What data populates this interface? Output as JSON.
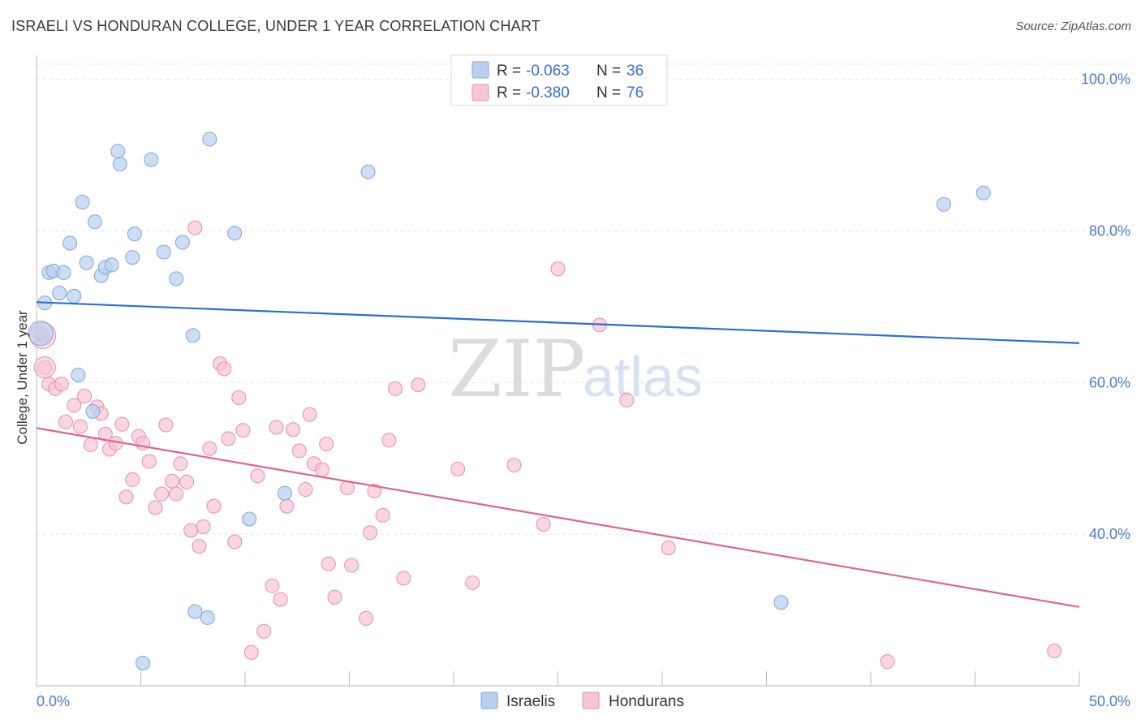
{
  "title": "ISRAELI VS HONDURAN COLLEGE, UNDER 1 YEAR CORRELATION CHART",
  "source": "Source: ZipAtlas.com",
  "watermark": {
    "zip": "ZIP",
    "atlas": "atlas"
  },
  "colors": {
    "israelis_fill": "#b8d0f0",
    "israelis_stroke": "#7fa6dc",
    "israelis_line": "#2a6fd0",
    "hondurans_fill": "#f7c5d5",
    "hondurans_stroke": "#e58fae",
    "hondurans_line": "#e0648f",
    "axis_label": "#4a7bd0",
    "grid": "#e4e4e4"
  },
  "legend": {
    "rows": [
      {
        "r_label": "R = ",
        "r_value": "-0.063",
        "n_label": "N = ",
        "n_value": "36"
      },
      {
        "r_label": "R = ",
        "r_value": "-0.380",
        "n_label": "N = ",
        "n_value": "76"
      }
    ]
  },
  "chart_data": {
    "type": "scatter",
    "ylabel": "College, Under 1 year",
    "xlim": [
      0,
      50
    ],
    "ylim": [
      20,
      102
    ],
    "x_tick_labels": [
      "0.0%",
      "50.0%"
    ],
    "y_ticks": [
      40,
      60,
      80,
      100
    ],
    "y_tick_labels": [
      "40.0%",
      "60.0%",
      "80.0%",
      "100.0%"
    ],
    "grid": true,
    "legend_position": "top-center",
    "series": [
      {
        "name": "Israelis",
        "trend": {
          "x": [
            0,
            50
          ],
          "y": [
            70.6,
            65.2
          ]
        },
        "points": [
          [
            0.2,
            66.5
          ],
          [
            0.4,
            70.5
          ],
          [
            0.6,
            74.5
          ],
          [
            0.8,
            74.7
          ],
          [
            1.1,
            71.8
          ],
          [
            1.3,
            74.5
          ],
          [
            1.6,
            78.4
          ],
          [
            1.8,
            71.4
          ],
          [
            2.0,
            61.0
          ],
          [
            2.2,
            83.8
          ],
          [
            2.4,
            75.8
          ],
          [
            2.8,
            81.2
          ],
          [
            3.1,
            74.1
          ],
          [
            3.3,
            75.2
          ],
          [
            3.6,
            75.5
          ],
          [
            2.7,
            56.2
          ],
          [
            3.9,
            90.5
          ],
          [
            4.0,
            88.8
          ],
          [
            4.6,
            76.5
          ],
          [
            4.7,
            79.6
          ],
          [
            5.5,
            89.4
          ],
          [
            6.1,
            77.2
          ],
          [
            6.7,
            73.7
          ],
          [
            7.0,
            78.5
          ],
          [
            7.5,
            66.2
          ],
          [
            7.6,
            29.8
          ],
          [
            8.2,
            29.0
          ],
          [
            8.3,
            92.1
          ],
          [
            9.5,
            79.7
          ],
          [
            10.2,
            42.0
          ],
          [
            11.9,
            45.4
          ],
          [
            15.9,
            87.8
          ],
          [
            5.1,
            23.0
          ],
          [
            35.7,
            31.0
          ],
          [
            43.5,
            83.5
          ],
          [
            45.4,
            85.0
          ]
        ]
      },
      {
        "name": "Hondurans",
        "trend": {
          "x": [
            0,
            50
          ],
          "y": [
            54.0,
            30.4
          ]
        },
        "points": [
          [
            0.3,
            66.2
          ],
          [
            0.4,
            62.0
          ],
          [
            0.6,
            59.8
          ],
          [
            0.9,
            59.2
          ],
          [
            1.2,
            59.8
          ],
          [
            1.4,
            54.8
          ],
          [
            1.8,
            57.0
          ],
          [
            2.1,
            54.2
          ],
          [
            2.3,
            58.2
          ],
          [
            2.6,
            51.8
          ],
          [
            2.9,
            56.8
          ],
          [
            3.1,
            55.9
          ],
          [
            3.3,
            53.2
          ],
          [
            3.5,
            51.2
          ],
          [
            3.8,
            52.0
          ],
          [
            4.1,
            54.5
          ],
          [
            4.3,
            44.9
          ],
          [
            4.6,
            47.2
          ],
          [
            4.9,
            52.9
          ],
          [
            5.1,
            52.0
          ],
          [
            5.4,
            49.6
          ],
          [
            5.7,
            43.5
          ],
          [
            6.0,
            45.3
          ],
          [
            6.2,
            54.4
          ],
          [
            6.5,
            47.0
          ],
          [
            6.7,
            45.3
          ],
          [
            6.9,
            49.3
          ],
          [
            7.2,
            46.9
          ],
          [
            7.4,
            40.5
          ],
          [
            7.6,
            80.4
          ],
          [
            7.8,
            38.4
          ],
          [
            8.0,
            41.0
          ],
          [
            8.3,
            51.3
          ],
          [
            8.5,
            43.7
          ],
          [
            8.8,
            62.5
          ],
          [
            9.0,
            61.8
          ],
          [
            9.2,
            52.6
          ],
          [
            9.5,
            39.0
          ],
          [
            9.7,
            58.0
          ],
          [
            9.9,
            53.7
          ],
          [
            10.3,
            24.4
          ],
          [
            10.6,
            47.7
          ],
          [
            10.9,
            27.2
          ],
          [
            11.3,
            33.2
          ],
          [
            11.5,
            54.1
          ],
          [
            11.7,
            31.4
          ],
          [
            12.0,
            43.7
          ],
          [
            12.3,
            53.8
          ],
          [
            12.6,
            51.0
          ],
          [
            12.9,
            45.9
          ],
          [
            13.1,
            55.8
          ],
          [
            13.3,
            49.3
          ],
          [
            13.7,
            48.5
          ],
          [
            14.0,
            36.1
          ],
          [
            14.3,
            31.7
          ],
          [
            14.9,
            46.1
          ],
          [
            15.1,
            35.9
          ],
          [
            15.8,
            28.9
          ],
          [
            16.0,
            40.2
          ],
          [
            16.2,
            45.7
          ],
          [
            16.6,
            42.5
          ],
          [
            16.9,
            52.4
          ],
          [
            17.2,
            59.2
          ],
          [
            17.6,
            34.2
          ],
          [
            18.3,
            59.7
          ],
          [
            20.2,
            48.6
          ],
          [
            20.9,
            33.6
          ],
          [
            22.9,
            49.1
          ],
          [
            24.3,
            41.3
          ],
          [
            25.0,
            75.0
          ],
          [
            27.0,
            67.6
          ],
          [
            28.3,
            57.7
          ],
          [
            30.3,
            38.2
          ],
          [
            40.8,
            23.2
          ],
          [
            48.8,
            24.6
          ],
          [
            13.9,
            51.9
          ]
        ]
      }
    ]
  }
}
